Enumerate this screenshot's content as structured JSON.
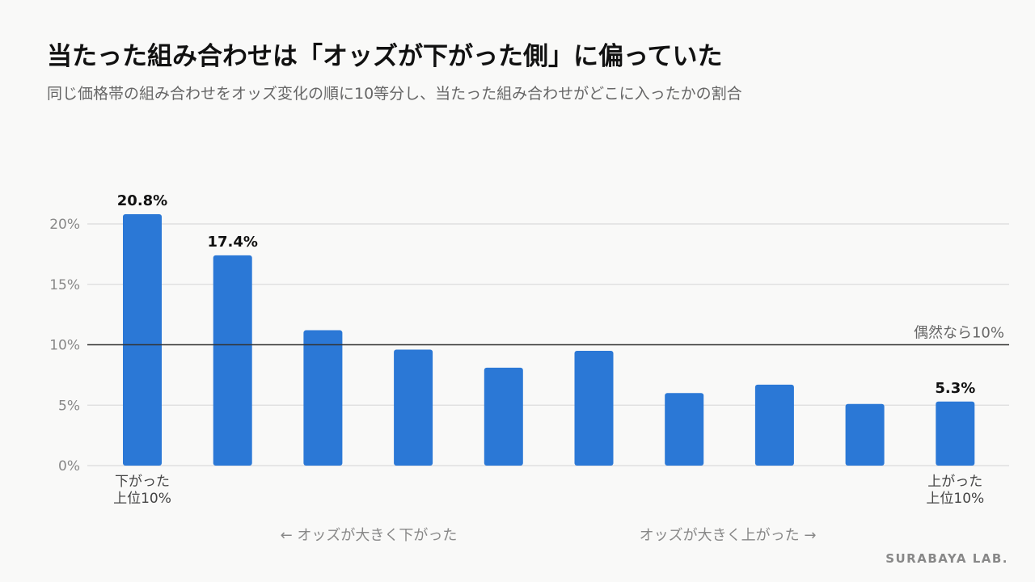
{
  "title": "当たった組み合わせは「オッズが下がった側」に偏っていた",
  "subtitle": "同じ価格帯の組み合わせをオッズ変化の順に10等分し、当たった組み合わせがどこに入ったかの割合",
  "brand": "SURABAYA LAB.",
  "colors": {
    "bar": "#2b78d6",
    "reference_line": "#333333",
    "grid": "#dcdcdc"
  },
  "chart_data": {
    "type": "bar",
    "ylim": [
      0,
      20
    ],
    "yticks": [
      "0%",
      "5%",
      "10%",
      "15%",
      "20%"
    ],
    "grid": true,
    "values": [
      20.8,
      17.4,
      11.2,
      9.6,
      8.1,
      9.5,
      6.0,
      6.7,
      5.1,
      5.3
    ],
    "data_labels": [
      "20.8%",
      "17.4%",
      "",
      "",
      "",
      "",
      "",
      "",
      "",
      "5.3%"
    ],
    "reference_line": {
      "value": 10,
      "label": "偶然なら10%"
    },
    "x_end_labels": {
      "left": [
        "下がった",
        "上位10%"
      ],
      "right": [
        "上がった",
        "上位10%"
      ]
    },
    "direction_labels": {
      "left": "← オッズが大きく下がった",
      "right": "オッズが大きく上がった →"
    }
  }
}
